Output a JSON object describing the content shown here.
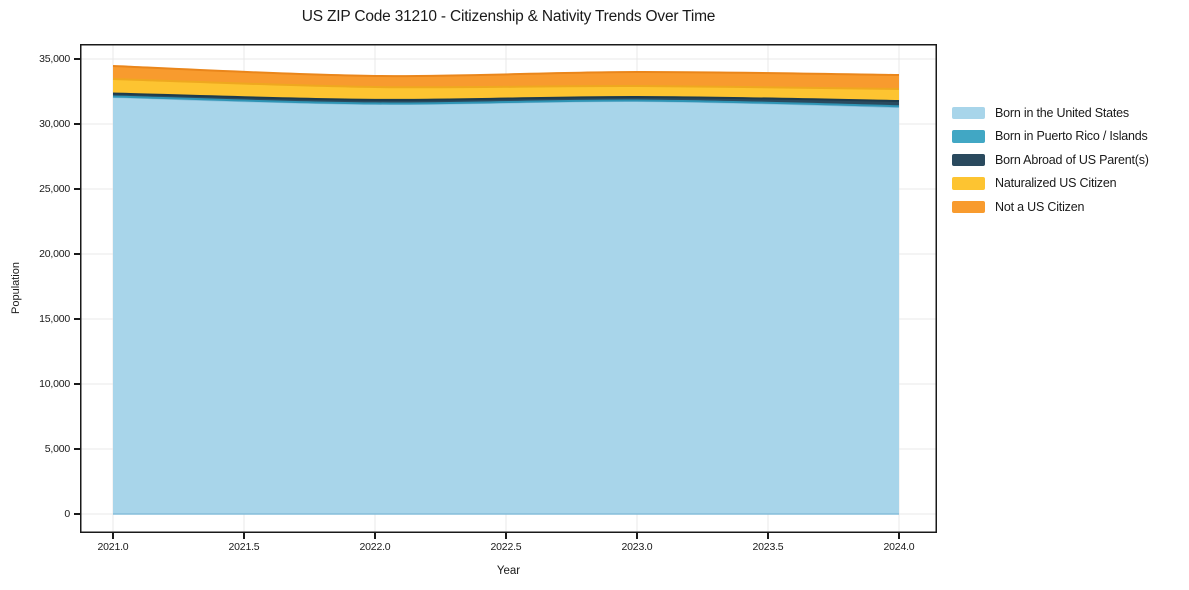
{
  "chart_data": {
    "type": "area",
    "stacked": true,
    "title": "US ZIP Code 31210 - Citizenship & Nativity Trends Over Time",
    "xlabel": "Year",
    "ylabel": "Population",
    "x": [
      2021,
      2022,
      2023,
      2024
    ],
    "xticks": [
      2021,
      2021.5,
      2022,
      2022.5,
      2023,
      2023.5,
      2024
    ],
    "xticklabels": [
      "2021.0",
      "2021.5",
      "2022.0",
      "2022.5",
      "2023.0",
      "2023.5",
      "2024.0"
    ],
    "yticks": [
      0,
      5000,
      10000,
      15000,
      20000,
      25000,
      30000,
      35000
    ],
    "yticklabels": [
      "0",
      "5,000",
      "10,000",
      "15,000",
      "20,000",
      "25,000",
      "30,000",
      "35,000"
    ],
    "xlim": [
      2020.87,
      2024.15
    ],
    "ylim": [
      -1460,
      36150
    ],
    "grid": true,
    "grid_color": "#e9e9e9",
    "frame_color": "#1a1a1a",
    "legend_position": "right",
    "series": [
      {
        "name": "Born in the United States",
        "color": "#a8d5ea",
        "edge": "#86bdda",
        "values": [
          32080,
          31540,
          31770,
          31310
        ]
      },
      {
        "name": "Born in Puerto Rico / Islands",
        "color": "#41a7c4",
        "edge": "#2f95b5",
        "values": [
          40,
          45,
          40,
          60
        ]
      },
      {
        "name": "Born Abroad of US Parent(s)",
        "color": "#2a4a5e",
        "edge": "#1d3b4d",
        "values": [
          230,
          270,
          270,
          400
        ]
      },
      {
        "name": "Naturalized US Citizen",
        "color": "#fdc431",
        "edge": "#efa81f",
        "values": [
          1110,
          990,
          840,
          920
        ]
      },
      {
        "name": "Not a US Citizen",
        "color": "#f89b2e",
        "edge": "#ea861b",
        "values": [
          1000,
          850,
          1080,
          1075
        ]
      }
    ]
  }
}
